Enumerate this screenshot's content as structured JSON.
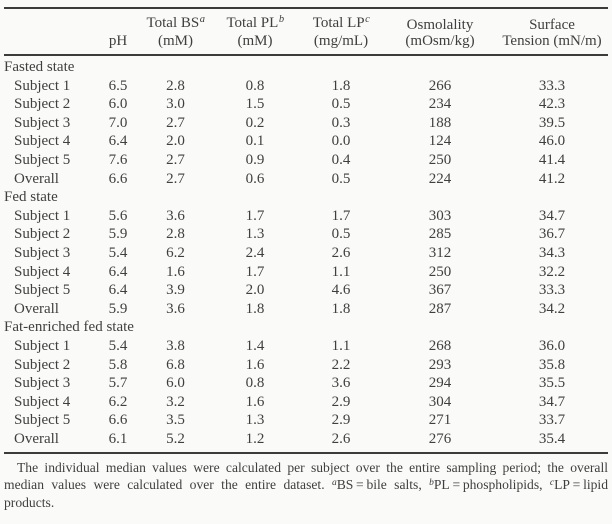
{
  "table": {
    "columns": [
      {
        "top": "",
        "sup": "",
        "bottom": "pH"
      },
      {
        "top": "Total BS",
        "sup": "a",
        "bottom": "(mM)"
      },
      {
        "top": "Total PL",
        "sup": "b",
        "bottom": "(mM)"
      },
      {
        "top": "Total LP",
        "sup": "c",
        "bottom": "(mg/mL)"
      },
      {
        "top": "Osmolality",
        "sup": "",
        "bottom": "(mOsm/kg)"
      },
      {
        "top": "Surface",
        "sup": "",
        "bottom": "Tension (mN/m)"
      }
    ],
    "groups": [
      {
        "label": "Fasted state",
        "rows": [
          {
            "label": "Subject 1",
            "values": [
              "6.5",
              "2.8",
              "0.8",
              "1.8",
              "266",
              "33.3"
            ]
          },
          {
            "label": "Subject 2",
            "values": [
              "6.0",
              "3.0",
              "1.5",
              "0.5",
              "234",
              "42.3"
            ]
          },
          {
            "label": "Subject 3",
            "values": [
              "7.0",
              "2.7",
              "0.2",
              "0.3",
              "188",
              "39.5"
            ]
          },
          {
            "label": "Subject 4",
            "values": [
              "6.4",
              "2.0",
              "0.1",
              "0.0",
              "124",
              "46.0"
            ]
          },
          {
            "label": "Subject 5",
            "values": [
              "7.6",
              "2.7",
              "0.9",
              "0.4",
              "250",
              "41.4"
            ]
          },
          {
            "label": "Overall",
            "values": [
              "6.6",
              "2.7",
              "0.6",
              "0.5",
              "224",
              "41.2"
            ]
          }
        ]
      },
      {
        "label": "Fed state",
        "rows": [
          {
            "label": "Subject 1",
            "values": [
              "5.6",
              "3.6",
              "1.7",
              "1.7",
              "303",
              "34.7"
            ]
          },
          {
            "label": "Subject 2",
            "values": [
              "5.9",
              "2.8",
              "1.3",
              "0.5",
              "285",
              "36.7"
            ]
          },
          {
            "label": "Subject 3",
            "values": [
              "5.4",
              "6.2",
              "2.4",
              "2.6",
              "312",
              "34.3"
            ]
          },
          {
            "label": "Subject 4",
            "values": [
              "6.4",
              "1.6",
              "1.7",
              "1.1",
              "250",
              "32.2"
            ]
          },
          {
            "label": "Subject 5",
            "values": [
              "6.4",
              "3.9",
              "2.0",
              "4.6",
              "367",
              "33.3"
            ]
          },
          {
            "label": "Overall",
            "values": [
              "5.9",
              "3.6",
              "1.8",
              "1.8",
              "287",
              "34.2"
            ]
          }
        ]
      },
      {
        "label": "Fat-enriched fed state",
        "rows": [
          {
            "label": "Subject 1",
            "values": [
              "5.4",
              "3.8",
              "1.4",
              "1.1",
              "268",
              "36.0"
            ]
          },
          {
            "label": "Subject 2",
            "values": [
              "5.8",
              "6.8",
              "1.6",
              "2.2",
              "293",
              "35.8"
            ]
          },
          {
            "label": "Subject 3",
            "values": [
              "5.7",
              "6.0",
              "0.8",
              "3.6",
              "294",
              "35.5"
            ]
          },
          {
            "label": "Subject 4",
            "values": [
              "6.2",
              "3.2",
              "1.6",
              "2.9",
              "304",
              "34.7"
            ]
          },
          {
            "label": "Subject 5",
            "values": [
              "6.6",
              "3.5",
              "1.3",
              "2.9",
              "271",
              "33.7"
            ]
          },
          {
            "label": "Overall",
            "values": [
              "6.1",
              "5.2",
              "1.2",
              "2.6",
              "276",
              "35.4"
            ]
          }
        ]
      }
    ]
  },
  "footnote": {
    "text_main": "The individual median values were calculated per subject over the entire sampling period; the overall median values were calculated over the entire dataset. ",
    "sup_a": "a",
    "text_bs": "BS = bile salts, ",
    "sup_b": "b",
    "text_pl": "PL = phospholipids, ",
    "sup_c": "c",
    "text_lp": "LP = lipid products."
  }
}
